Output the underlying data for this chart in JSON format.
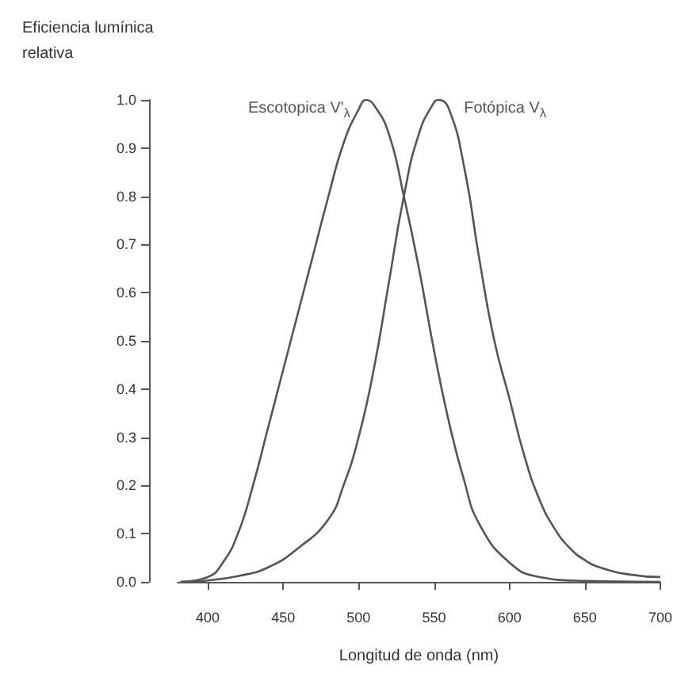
{
  "chart_data": {
    "type": "line",
    "xlabel": "Longitud de onda (nm)",
    "ylabel": "Eficiencia lumínica relativa",
    "xlim": [
      380,
      700
    ],
    "xticks": [
      400,
      450,
      500,
      550,
      600,
      650,
      700
    ],
    "ylim": [
      0,
      1
    ],
    "yticks": [
      {
        "value": 0,
        "label": "0.0"
      },
      0.1,
      0.2,
      0.3,
      0.4,
      0.5,
      0.6,
      0.7,
      0.8,
      0.9,
      {
        "value": 1,
        "label": "1.0"
      }
    ],
    "marker": "none",
    "line_style": "solid",
    "series": [
      {
        "name": "Escotopica V'$_{λ}$",
        "color": "#555555",
        "x": [
          382,
          400,
          410,
          420,
          430,
          440,
          450,
          460,
          470,
          480,
          490,
          500,
          505,
          510,
          520,
          530,
          540,
          550,
          560,
          570,
          580,
          600,
          620,
          650,
          700
        ],
        "values": [
          0,
          0.01,
          0.04,
          0.1,
          0.2,
          0.32,
          0.44,
          0.56,
          0.68,
          0.8,
          0.91,
          0.98,
          1.0,
          0.99,
          0.93,
          0.8,
          0.65,
          0.48,
          0.33,
          0.21,
          0.12,
          0.04,
          0.01,
          0.002,
          0
        ]
      },
      {
        "name": "Fotópica V$_{λ}$",
        "color": "#555555",
        "x": [
          382,
          400,
          420,
          440,
          460,
          480,
          490,
          500,
          510,
          520,
          530,
          540,
          550,
          553,
          560,
          570,
          580,
          590,
          600,
          610,
          620,
          630,
          640,
          650,
          660,
          680,
          700
        ],
        "values": [
          0,
          0.003,
          0.012,
          0.03,
          0.07,
          0.13,
          0.2,
          0.3,
          0.44,
          0.62,
          0.8,
          0.93,
          0.995,
          1.0,
          0.98,
          0.86,
          0.67,
          0.5,
          0.38,
          0.26,
          0.17,
          0.11,
          0.07,
          0.045,
          0.03,
          0.015,
          0.01
        ]
      }
    ]
  }
}
